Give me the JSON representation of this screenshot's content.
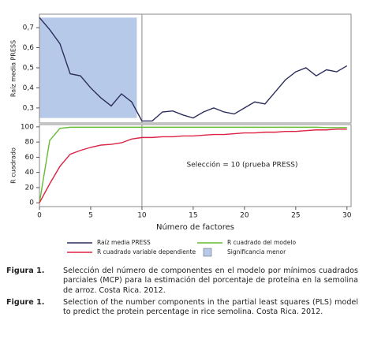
{
  "chart_data": [
    {
      "type": "line",
      "y_label": "Raíz media PRESS",
      "x": [
        0,
        1,
        2,
        3,
        4,
        5,
        6,
        7,
        8,
        9,
        10,
        11,
        12,
        13,
        14,
        15,
        16,
        17,
        18,
        19,
        20,
        21,
        22,
        23,
        24,
        25,
        26,
        27,
        28,
        29,
        30
      ],
      "xlim": [
        0,
        30.4
      ],
      "ylim": [
        0.225,
        0.767
      ],
      "yticks": [
        {
          "value": 0.3,
          "label": "0,3"
        },
        {
          "value": 0.4,
          "label": "0,4"
        },
        {
          "value": 0.5,
          "label": "0,5"
        },
        {
          "value": 0.6,
          "label": "0,6"
        },
        {
          "value": 0.7,
          "label": "0,7"
        }
      ],
      "shaded_region": {
        "name": "Significancia menor",
        "color": "#b7c9e8",
        "xlim": [
          0,
          9.5
        ],
        "ylim": [
          0.25,
          0.75
        ]
      },
      "reference_x": 10,
      "series": [
        {
          "name": "Raíz media PRESS",
          "color": "#2b2d5c",
          "values": [
            0.75,
            0.69,
            0.62,
            0.47,
            0.46,
            0.4,
            0.35,
            0.31,
            0.37,
            0.33,
            0.235,
            0.235,
            0.28,
            0.285,
            0.265,
            0.25,
            0.28,
            0.3,
            0.28,
            0.27,
            0.3,
            0.33,
            0.32,
            0.38,
            0.44,
            0.48,
            0.5,
            0.46,
            0.49,
            0.48,
            0.51
          ]
        }
      ]
    },
    {
      "type": "line",
      "x_label": "Número de factores",
      "y_label": "R cuadrado",
      "annotation": "Selección = 10 (prueba PRESS)",
      "x": [
        0,
        1,
        2,
        3,
        4,
        5,
        6,
        7,
        8,
        9,
        10,
        11,
        12,
        13,
        14,
        15,
        16,
        17,
        18,
        19,
        20,
        21,
        22,
        23,
        24,
        25,
        26,
        27,
        28,
        29,
        30
      ],
      "xlim": [
        0,
        30.4
      ],
      "ylim": [
        -5,
        103
      ],
      "xticks": [
        0,
        5,
        10,
        15,
        20,
        25,
        30
      ],
      "yticks": [
        0,
        20,
        40,
        60,
        80,
        100
      ],
      "reference_x": 10,
      "series": [
        {
          "name": "R cuadrado del modelo",
          "color": "#66bb33",
          "values": [
            0,
            82,
            98,
            99.5,
            99.5,
            99.5,
            99.5,
            99.5,
            99.5,
            99.5,
            99.5,
            99.5,
            99.5,
            99.5,
            99.5,
            99.5,
            99.5,
            99.5,
            99.5,
            99.5,
            99.5,
            99.5,
            99.5,
            99.5,
            99.5,
            99.5,
            99.5,
            99.5,
            99,
            99,
            99
          ]
        },
        {
          "name": "R cuadrado variable dependiente",
          "color": "#dd2244",
          "values": [
            0,
            25,
            48,
            64,
            69,
            73,
            76,
            77,
            79,
            84,
            86,
            86,
            87,
            87,
            88,
            88,
            89,
            90,
            90,
            91,
            92,
            92,
            93,
            93,
            94,
            94,
            95,
            96,
            96,
            97,
            97
          ]
        }
      ]
    }
  ],
  "captions": [
    {
      "label": "Figura 1.",
      "text": "Selección del número de componentes en el modelo por mínimos cuadrados parciales (MCP) para la estimación del porcentaje de proteína en la semolina de arroz. Costa Rica. 2012."
    },
    {
      "label": "Figure 1.",
      "text": "Selection of  the number components in the partial least squares (PLS) model to predict the protein percentage in rice semolina. Costa Rica. 2012."
    }
  ]
}
